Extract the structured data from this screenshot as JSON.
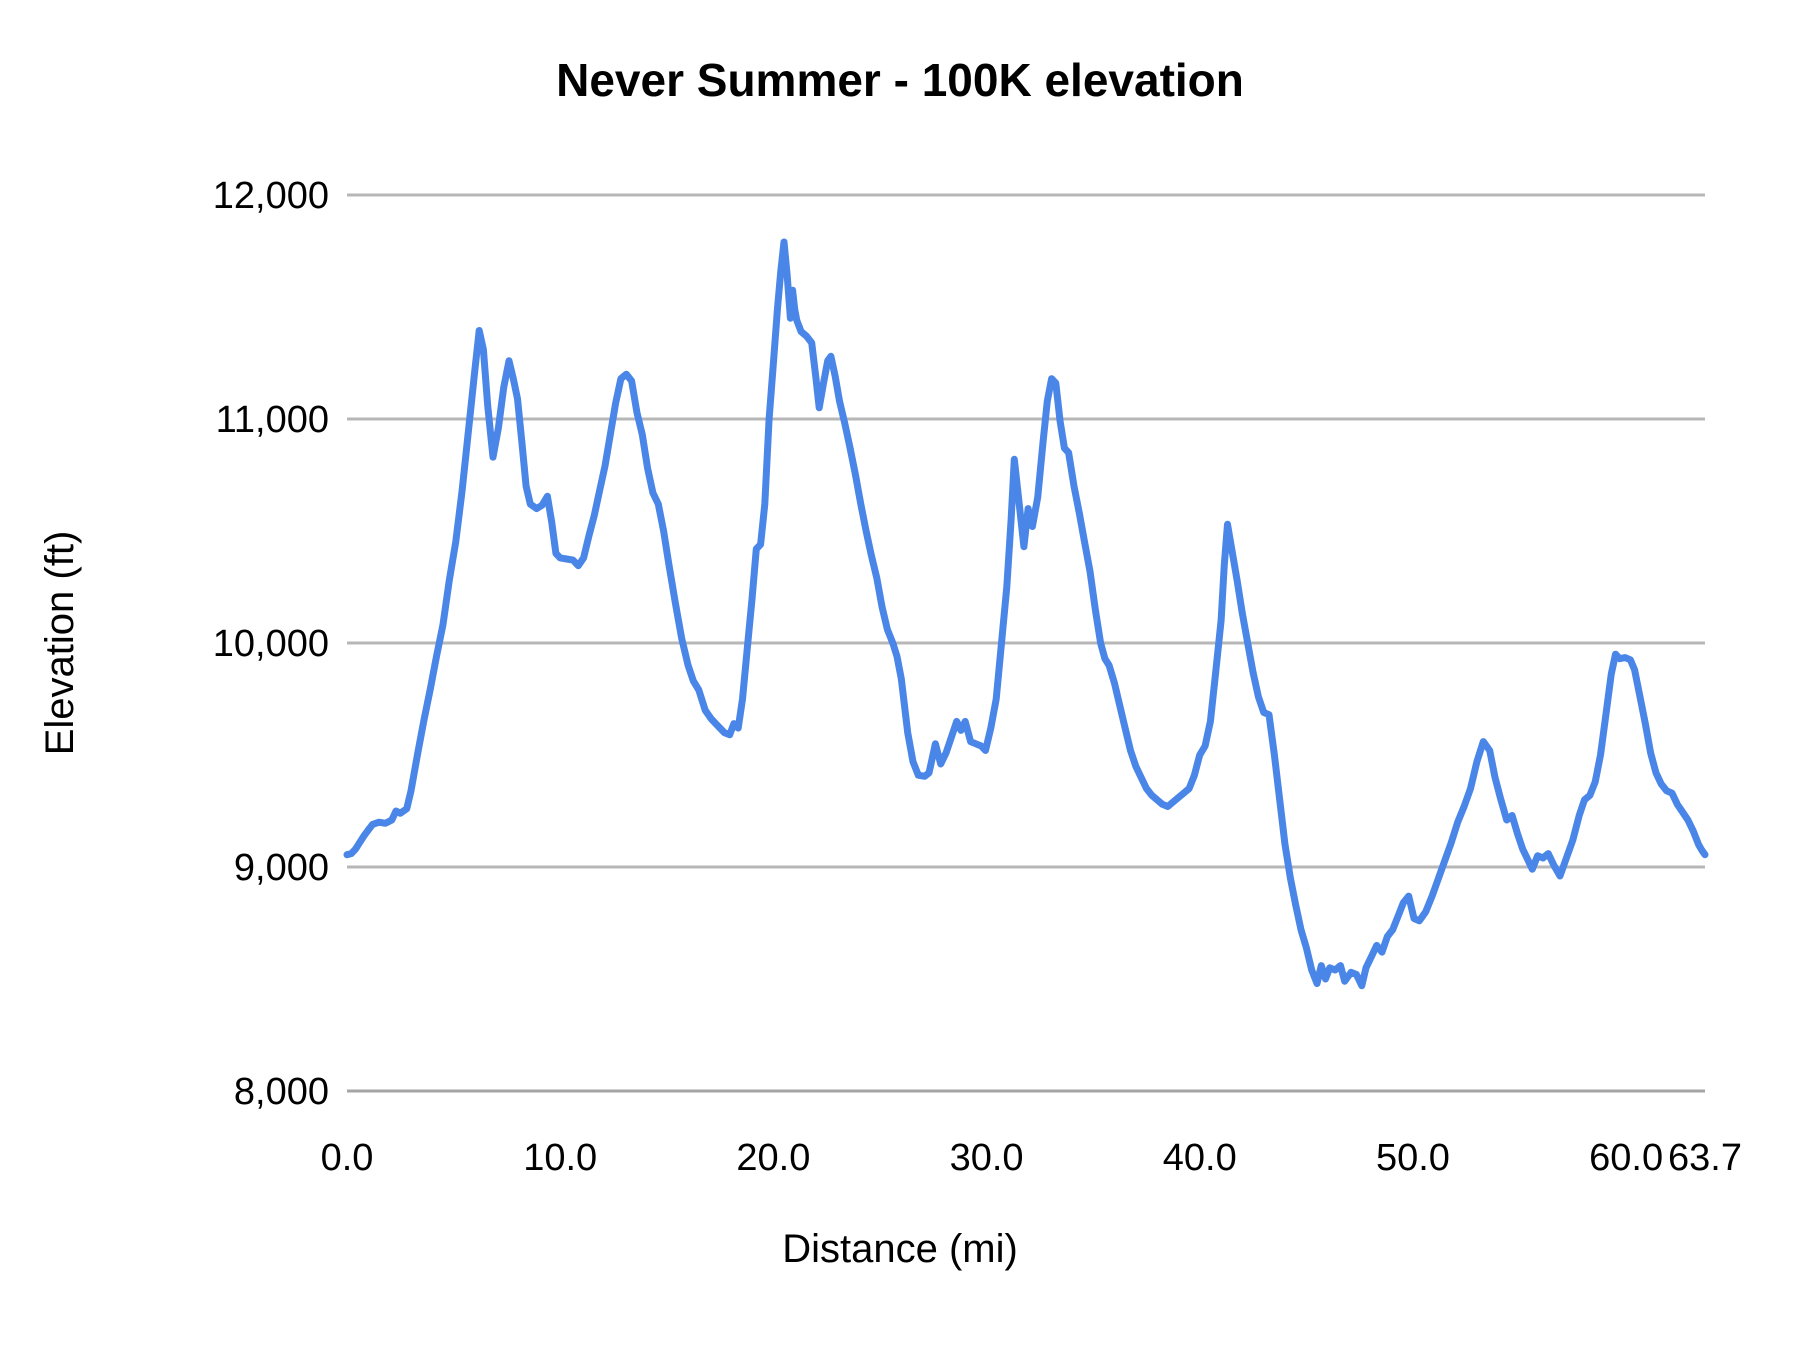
{
  "chart": {
    "title": "Never Summer - 100K elevation",
    "x_axis_title": "Distance (mi)",
    "y_axis_title": "Elevation (ft)"
  },
  "colors": {
    "line": "#4a86e8",
    "gridline": "#b7b7b7",
    "axis_line": "#a5a5a5",
    "text": "#000000",
    "background": "#ffffff"
  },
  "chart_data": {
    "type": "line",
    "title": "Never Summer - 100K elevation",
    "xlabel": "Distance (mi)",
    "ylabel": "Elevation (ft)",
    "xlim": [
      0,
      63.7
    ],
    "ylim": [
      8000,
      12000
    ],
    "grid": "horizontal",
    "legend": "none",
    "x_ticks": [
      0,
      10,
      20,
      30,
      40,
      50,
      60,
      63.7
    ],
    "x_tick_labels": [
      "0.0",
      "10.0",
      "20.0",
      "30.0",
      "40.0",
      "50.0",
      "60.0",
      "63.7"
    ],
    "y_ticks": [
      8000,
      9000,
      10000,
      11000,
      12000
    ],
    "y_tick_labels": [
      "8,000",
      "9,000",
      "10,000",
      "11,000",
      "12,000"
    ],
    "series": [
      {
        "name": "elevation",
        "points": [
          [
            0.0,
            9055
          ],
          [
            0.2,
            9060
          ],
          [
            0.4,
            9080
          ],
          [
            0.6,
            9110
          ],
          [
            0.8,
            9140
          ],
          [
            1.0,
            9165
          ],
          [
            1.2,
            9190
          ],
          [
            1.5,
            9200
          ],
          [
            1.8,
            9195
          ],
          [
            2.1,
            9210
          ],
          [
            2.3,
            9250
          ],
          [
            2.5,
            9240
          ],
          [
            2.8,
            9260
          ],
          [
            3.0,
            9340
          ],
          [
            3.3,
            9500
          ],
          [
            3.6,
            9650
          ],
          [
            3.9,
            9790
          ],
          [
            4.2,
            9940
          ],
          [
            4.5,
            10080
          ],
          [
            4.8,
            10280
          ],
          [
            5.1,
            10450
          ],
          [
            5.4,
            10680
          ],
          [
            5.7,
            10950
          ],
          [
            6.0,
            11220
          ],
          [
            6.2,
            11395
          ],
          [
            6.4,
            11310
          ],
          [
            6.6,
            11060
          ],
          [
            6.85,
            10830
          ],
          [
            7.1,
            10960
          ],
          [
            7.35,
            11140
          ],
          [
            7.6,
            11260
          ],
          [
            7.8,
            11180
          ],
          [
            8.0,
            11090
          ],
          [
            8.2,
            10900
          ],
          [
            8.4,
            10700
          ],
          [
            8.6,
            10620
          ],
          [
            8.9,
            10600
          ],
          [
            9.15,
            10615
          ],
          [
            9.4,
            10655
          ],
          [
            9.6,
            10540
          ],
          [
            9.8,
            10400
          ],
          [
            10.0,
            10380
          ],
          [
            10.3,
            10375
          ],
          [
            10.6,
            10370
          ],
          [
            10.85,
            10345
          ],
          [
            11.1,
            10380
          ],
          [
            11.35,
            10480
          ],
          [
            11.6,
            10570
          ],
          [
            11.85,
            10680
          ],
          [
            12.1,
            10790
          ],
          [
            12.35,
            10930
          ],
          [
            12.6,
            11070
          ],
          [
            12.85,
            11180
          ],
          [
            13.1,
            11200
          ],
          [
            13.35,
            11170
          ],
          [
            13.6,
            11030
          ],
          [
            13.85,
            10930
          ],
          [
            14.1,
            10780
          ],
          [
            14.35,
            10670
          ],
          [
            14.6,
            10620
          ],
          [
            14.85,
            10500
          ],
          [
            15.1,
            10350
          ],
          [
            15.4,
            10180
          ],
          [
            15.7,
            10020
          ],
          [
            16.0,
            9900
          ],
          [
            16.25,
            9830
          ],
          [
            16.5,
            9790
          ],
          [
            16.8,
            9700
          ],
          [
            17.1,
            9660
          ],
          [
            17.4,
            9630
          ],
          [
            17.7,
            9600
          ],
          [
            17.95,
            9590
          ],
          [
            18.15,
            9640
          ],
          [
            18.35,
            9620
          ],
          [
            18.55,
            9750
          ],
          [
            18.8,
            10000
          ],
          [
            19.0,
            10200
          ],
          [
            19.2,
            10420
          ],
          [
            19.4,
            10440
          ],
          [
            19.6,
            10620
          ],
          [
            19.8,
            11000
          ],
          [
            20.0,
            11250
          ],
          [
            20.2,
            11500
          ],
          [
            20.35,
            11660
          ],
          [
            20.5,
            11790
          ],
          [
            20.65,
            11640
          ],
          [
            20.8,
            11450
          ],
          [
            20.9,
            11575
          ],
          [
            21.0,
            11490
          ],
          [
            21.1,
            11440
          ],
          [
            21.3,
            11390
          ],
          [
            21.55,
            11370
          ],
          [
            21.8,
            11340
          ],
          [
            22.0,
            11180
          ],
          [
            22.15,
            11050
          ],
          [
            22.35,
            11160
          ],
          [
            22.55,
            11260
          ],
          [
            22.7,
            11280
          ],
          [
            22.9,
            11190
          ],
          [
            23.1,
            11080
          ],
          [
            23.35,
            10980
          ],
          [
            23.6,
            10870
          ],
          [
            23.85,
            10750
          ],
          [
            24.1,
            10620
          ],
          [
            24.35,
            10500
          ],
          [
            24.6,
            10390
          ],
          [
            24.85,
            10290
          ],
          [
            25.1,
            10160
          ],
          [
            25.35,
            10060
          ],
          [
            25.6,
            10000
          ],
          [
            25.8,
            9940
          ],
          [
            26.0,
            9840
          ],
          [
            26.3,
            9600
          ],
          [
            26.55,
            9470
          ],
          [
            26.8,
            9410
          ],
          [
            27.1,
            9405
          ],
          [
            27.3,
            9420
          ],
          [
            27.6,
            9550
          ],
          [
            27.85,
            9460
          ],
          [
            28.1,
            9510
          ],
          [
            28.35,
            9580
          ],
          [
            28.6,
            9650
          ],
          [
            28.8,
            9610
          ],
          [
            29.0,
            9650
          ],
          [
            29.25,
            9560
          ],
          [
            29.5,
            9550
          ],
          [
            29.75,
            9540
          ],
          [
            29.95,
            9520
          ],
          [
            30.2,
            9620
          ],
          [
            30.45,
            9750
          ],
          [
            30.7,
            10000
          ],
          [
            30.95,
            10250
          ],
          [
            31.15,
            10550
          ],
          [
            31.3,
            10820
          ],
          [
            31.5,
            10650
          ],
          [
            31.75,
            10430
          ],
          [
            31.95,
            10600
          ],
          [
            32.15,
            10520
          ],
          [
            32.4,
            10650
          ],
          [
            32.65,
            10900
          ],
          [
            32.85,
            11080
          ],
          [
            33.05,
            11180
          ],
          [
            33.25,
            11160
          ],
          [
            33.45,
            10990
          ],
          [
            33.65,
            10870
          ],
          [
            33.85,
            10850
          ],
          [
            34.1,
            10700
          ],
          [
            34.35,
            10580
          ],
          [
            34.6,
            10450
          ],
          [
            34.85,
            10320
          ],
          [
            35.1,
            10150
          ],
          [
            35.35,
            10000
          ],
          [
            35.55,
            9930
          ],
          [
            35.75,
            9900
          ],
          [
            36.0,
            9820
          ],
          [
            36.25,
            9720
          ],
          [
            36.5,
            9620
          ],
          [
            36.75,
            9520
          ],
          [
            37.0,
            9450
          ],
          [
            37.25,
            9400
          ],
          [
            37.5,
            9350
          ],
          [
            37.75,
            9320
          ],
          [
            38.0,
            9300
          ],
          [
            38.25,
            9280
          ],
          [
            38.5,
            9270
          ],
          [
            38.75,
            9290
          ],
          [
            39.0,
            9310
          ],
          [
            39.25,
            9330
          ],
          [
            39.5,
            9350
          ],
          [
            39.75,
            9410
          ],
          [
            40.0,
            9500
          ],
          [
            40.25,
            9540
          ],
          [
            40.5,
            9650
          ],
          [
            40.75,
            9870
          ],
          [
            41.0,
            10100
          ],
          [
            41.15,
            10350
          ],
          [
            41.3,
            10530
          ],
          [
            41.5,
            10420
          ],
          [
            41.75,
            10280
          ],
          [
            42.0,
            10130
          ],
          [
            42.25,
            10000
          ],
          [
            42.5,
            9870
          ],
          [
            42.75,
            9760
          ],
          [
            43.0,
            9690
          ],
          [
            43.25,
            9680
          ],
          [
            43.5,
            9500
          ],
          [
            43.75,
            9300
          ],
          [
            44.0,
            9100
          ],
          [
            44.25,
            8950
          ],
          [
            44.5,
            8830
          ],
          [
            44.75,
            8720
          ],
          [
            45.0,
            8640
          ],
          [
            45.25,
            8540
          ],
          [
            45.5,
            8480
          ],
          [
            45.7,
            8560
          ],
          [
            45.9,
            8500
          ],
          [
            46.1,
            8550
          ],
          [
            46.35,
            8540
          ],
          [
            46.6,
            8560
          ],
          [
            46.8,
            8490
          ],
          [
            47.1,
            8530
          ],
          [
            47.35,
            8520
          ],
          [
            47.6,
            8470
          ],
          [
            47.8,
            8550
          ],
          [
            48.05,
            8600
          ],
          [
            48.3,
            8650
          ],
          [
            48.55,
            8620
          ],
          [
            48.8,
            8690
          ],
          [
            49.05,
            8720
          ],
          [
            49.3,
            8780
          ],
          [
            49.55,
            8840
          ],
          [
            49.8,
            8870
          ],
          [
            50.05,
            8770
          ],
          [
            50.3,
            8760
          ],
          [
            50.6,
            8800
          ],
          [
            50.9,
            8870
          ],
          [
            51.2,
            8950
          ],
          [
            51.5,
            9030
          ],
          [
            51.8,
            9110
          ],
          [
            52.1,
            9200
          ],
          [
            52.4,
            9270
          ],
          [
            52.7,
            9350
          ],
          [
            53.0,
            9470
          ],
          [
            53.3,
            9560
          ],
          [
            53.6,
            9520
          ],
          [
            53.85,
            9400
          ],
          [
            54.1,
            9310
          ],
          [
            54.4,
            9210
          ],
          [
            54.65,
            9230
          ],
          [
            54.9,
            9150
          ],
          [
            55.15,
            9080
          ],
          [
            55.4,
            9030
          ],
          [
            55.6,
            8990
          ],
          [
            55.85,
            9050
          ],
          [
            56.1,
            9040
          ],
          [
            56.35,
            9060
          ],
          [
            56.6,
            9010
          ],
          [
            56.9,
            8960
          ],
          [
            57.2,
            9040
          ],
          [
            57.5,
            9120
          ],
          [
            57.8,
            9230
          ],
          [
            58.05,
            9300
          ],
          [
            58.3,
            9320
          ],
          [
            58.55,
            9380
          ],
          [
            58.8,
            9500
          ],
          [
            59.05,
            9680
          ],
          [
            59.3,
            9860
          ],
          [
            59.5,
            9950
          ],
          [
            59.7,
            9930
          ],
          [
            59.95,
            9935
          ],
          [
            60.2,
            9925
          ],
          [
            60.4,
            9880
          ],
          [
            60.65,
            9760
          ],
          [
            60.9,
            9640
          ],
          [
            61.15,
            9510
          ],
          [
            61.4,
            9420
          ],
          [
            61.65,
            9370
          ],
          [
            61.9,
            9340
          ],
          [
            62.15,
            9330
          ],
          [
            62.4,
            9280
          ],
          [
            62.65,
            9245
          ],
          [
            62.9,
            9210
          ],
          [
            63.15,
            9160
          ],
          [
            63.4,
            9100
          ],
          [
            63.55,
            9075
          ],
          [
            63.7,
            9055
          ]
        ]
      }
    ]
  }
}
